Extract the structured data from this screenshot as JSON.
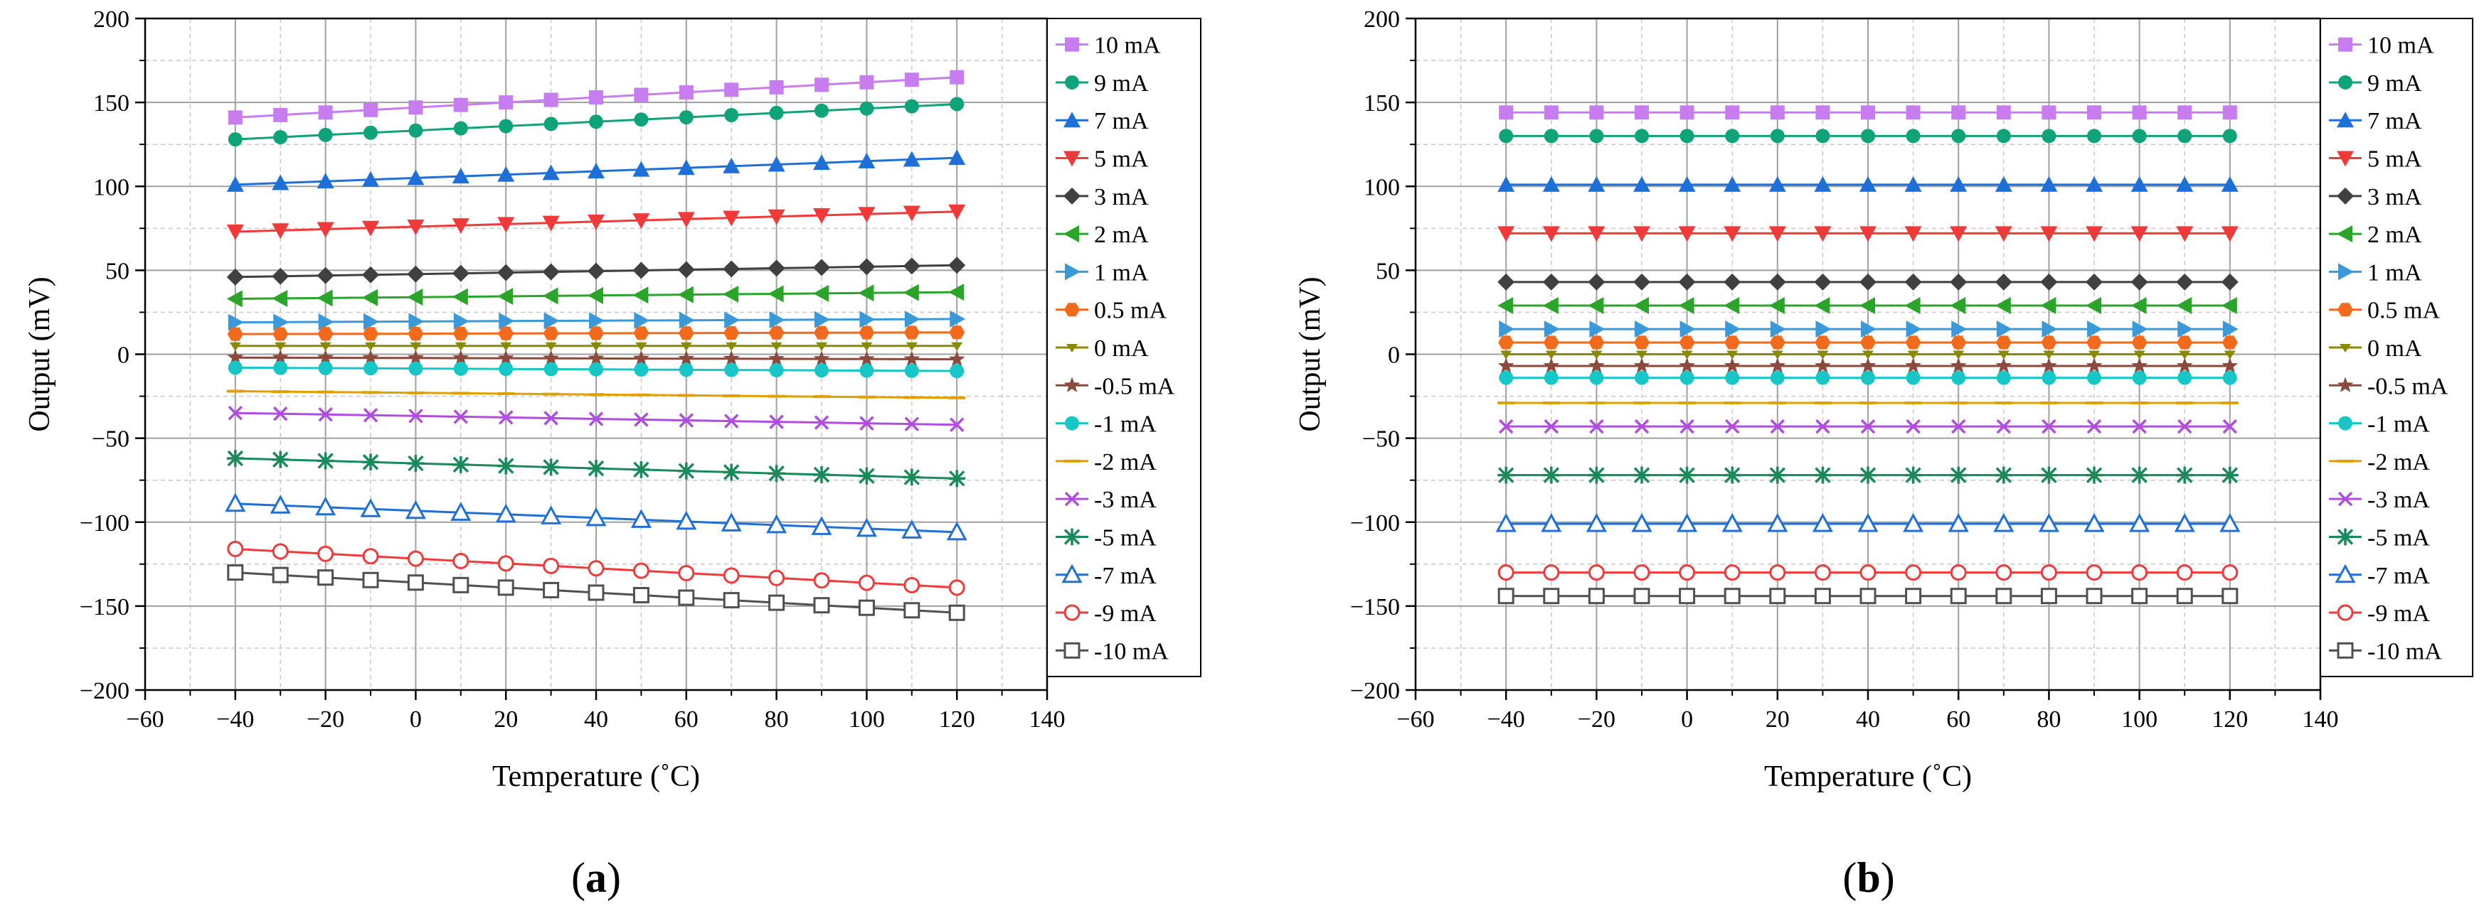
{
  "chart_data": [
    {
      "type": "line",
      "panel": "a",
      "xlabel": "Temperature (˚C)",
      "ylabel": "Output (mV)",
      "xlim": [
        -60,
        140
      ],
      "ylim": [
        -200,
        200
      ],
      "xticks": [
        -60,
        -40,
        -20,
        0,
        20,
        40,
        60,
        80,
        100,
        120,
        140
      ],
      "yticks": [
        -200,
        -150,
        -100,
        -50,
        0,
        50,
        100,
        150,
        200
      ],
      "grid": true,
      "legend_position": "right",
      "x": [
        -40,
        -30,
        -20,
        -10,
        0,
        10,
        20,
        30,
        40,
        50,
        60,
        70,
        80,
        90,
        100,
        110,
        120
      ],
      "series": [
        {
          "name": "10  mA",
          "color": "#c77cf0",
          "marker": "square-filled",
          "start": 141,
          "end": 165
        },
        {
          "name": "9  mA",
          "color": "#0fa37a",
          "marker": "circle-filled",
          "start": 128,
          "end": 149
        },
        {
          "name": "7  mA",
          "color": "#1f6fd8",
          "marker": "triangle-up-filled",
          "start": 101,
          "end": 117
        },
        {
          "name": "5  mA",
          "color": "#f03a3a",
          "marker": "triangle-down-filled",
          "start": 73,
          "end": 85
        },
        {
          "name": "3  mA",
          "color": "#404040",
          "marker": "diamond-filled",
          "start": 46,
          "end": 53
        },
        {
          "name": "2  mA",
          "color": "#2aa52a",
          "marker": "triangle-left-filled",
          "start": 33,
          "end": 37
        },
        {
          "name": "1  mA",
          "color": "#3a9ad9",
          "marker": "triangle-right-filled",
          "start": 19,
          "end": 21
        },
        {
          "name": "0.5 mA",
          "color": "#f26b1d",
          "marker": "hexagon-filled",
          "start": 12,
          "end": 13
        },
        {
          "name": "0  mA",
          "color": "#8a8a00",
          "marker": "triangle-down-small",
          "start": 5,
          "end": 5
        },
        {
          "name": "-0.5 mA",
          "color": "#8b4a3c",
          "marker": "star-filled",
          "start": -2,
          "end": -3
        },
        {
          "name": "-1  mA",
          "color": "#17c7c7",
          "marker": "circle-filled",
          "start": -8,
          "end": -10
        },
        {
          "name": "-2  mA",
          "color": "#e0a000",
          "marker": "dash",
          "start": -22,
          "end": -26
        },
        {
          "name": "-3  mA",
          "color": "#b04de0",
          "marker": "x",
          "start": -35,
          "end": -42
        },
        {
          "name": "-5  mA",
          "color": "#1a8a5a",
          "marker": "asterisk",
          "start": -62,
          "end": -74
        },
        {
          "name": "-7  mA",
          "color": "#1f6fd8",
          "marker": "triangle-up-open",
          "start": -89,
          "end": -106
        },
        {
          "name": "-9  mA",
          "color": "#f03a3a",
          "marker": "circle-open",
          "start": -116,
          "end": -139
        },
        {
          "name": "-10  mA",
          "color": "#505050",
          "marker": "square-open",
          "start": -130,
          "end": -154
        }
      ],
      "panel_label": "a"
    },
    {
      "type": "line",
      "panel": "b",
      "xlabel": "Temperature (˚C)",
      "ylabel": "Output (mV)",
      "xlim": [
        -60,
        140
      ],
      "ylim": [
        -200,
        200
      ],
      "xticks": [
        -60,
        -40,
        -20,
        0,
        20,
        40,
        60,
        80,
        100,
        120,
        140
      ],
      "yticks": [
        -200,
        -150,
        -100,
        -50,
        0,
        50,
        100,
        150,
        200
      ],
      "grid": true,
      "legend_position": "right",
      "x": [
        -40,
        -30,
        -20,
        -10,
        0,
        10,
        20,
        30,
        40,
        50,
        60,
        70,
        80,
        90,
        100,
        110,
        120
      ],
      "series": [
        {
          "name": "10  mA",
          "color": "#c77cf0",
          "marker": "square-filled",
          "start": 144,
          "end": 144
        },
        {
          "name": "9  mA",
          "color": "#0fa37a",
          "marker": "circle-filled",
          "start": 130,
          "end": 130
        },
        {
          "name": "7  mA",
          "color": "#1f6fd8",
          "marker": "triangle-up-filled",
          "start": 101,
          "end": 101
        },
        {
          "name": "5  mA",
          "color": "#f03a3a",
          "marker": "triangle-down-filled",
          "start": 72,
          "end": 72
        },
        {
          "name": "3  mA",
          "color": "#404040",
          "marker": "diamond-filled",
          "start": 43,
          "end": 43
        },
        {
          "name": "2  mA",
          "color": "#2aa52a",
          "marker": "triangle-left-filled",
          "start": 29,
          "end": 29
        },
        {
          "name": "1  mA",
          "color": "#3a9ad9",
          "marker": "triangle-right-filled",
          "start": 15,
          "end": 15
        },
        {
          "name": "0.5 mA",
          "color": "#f26b1d",
          "marker": "hexagon-filled",
          "start": 7,
          "end": 7
        },
        {
          "name": "0  mA",
          "color": "#8a8a00",
          "marker": "triangle-down-small",
          "start": 0,
          "end": 0
        },
        {
          "name": "-0.5 mA",
          "color": "#8b4a3c",
          "marker": "star-filled",
          "start": -7,
          "end": -7
        },
        {
          "name": "-1  mA",
          "color": "#17c7c7",
          "marker": "circle-filled",
          "start": -14,
          "end": -14
        },
        {
          "name": "-2  mA",
          "color": "#e0a000",
          "marker": "dash",
          "start": -29,
          "end": -29
        },
        {
          "name": "-3  mA",
          "color": "#b04de0",
          "marker": "x",
          "start": -43,
          "end": -43
        },
        {
          "name": "-5  mA",
          "color": "#1a8a5a",
          "marker": "asterisk",
          "start": -72,
          "end": -72
        },
        {
          "name": "-7  mA",
          "color": "#1f6fd8",
          "marker": "triangle-up-open",
          "start": -101,
          "end": -101
        },
        {
          "name": "-9  mA",
          "color": "#f03a3a",
          "marker": "circle-open",
          "start": -130,
          "end": -130
        },
        {
          "name": "-10  mA",
          "color": "#505050",
          "marker": "square-open",
          "start": -144,
          "end": -144
        }
      ],
      "panel_label": "b"
    }
  ]
}
